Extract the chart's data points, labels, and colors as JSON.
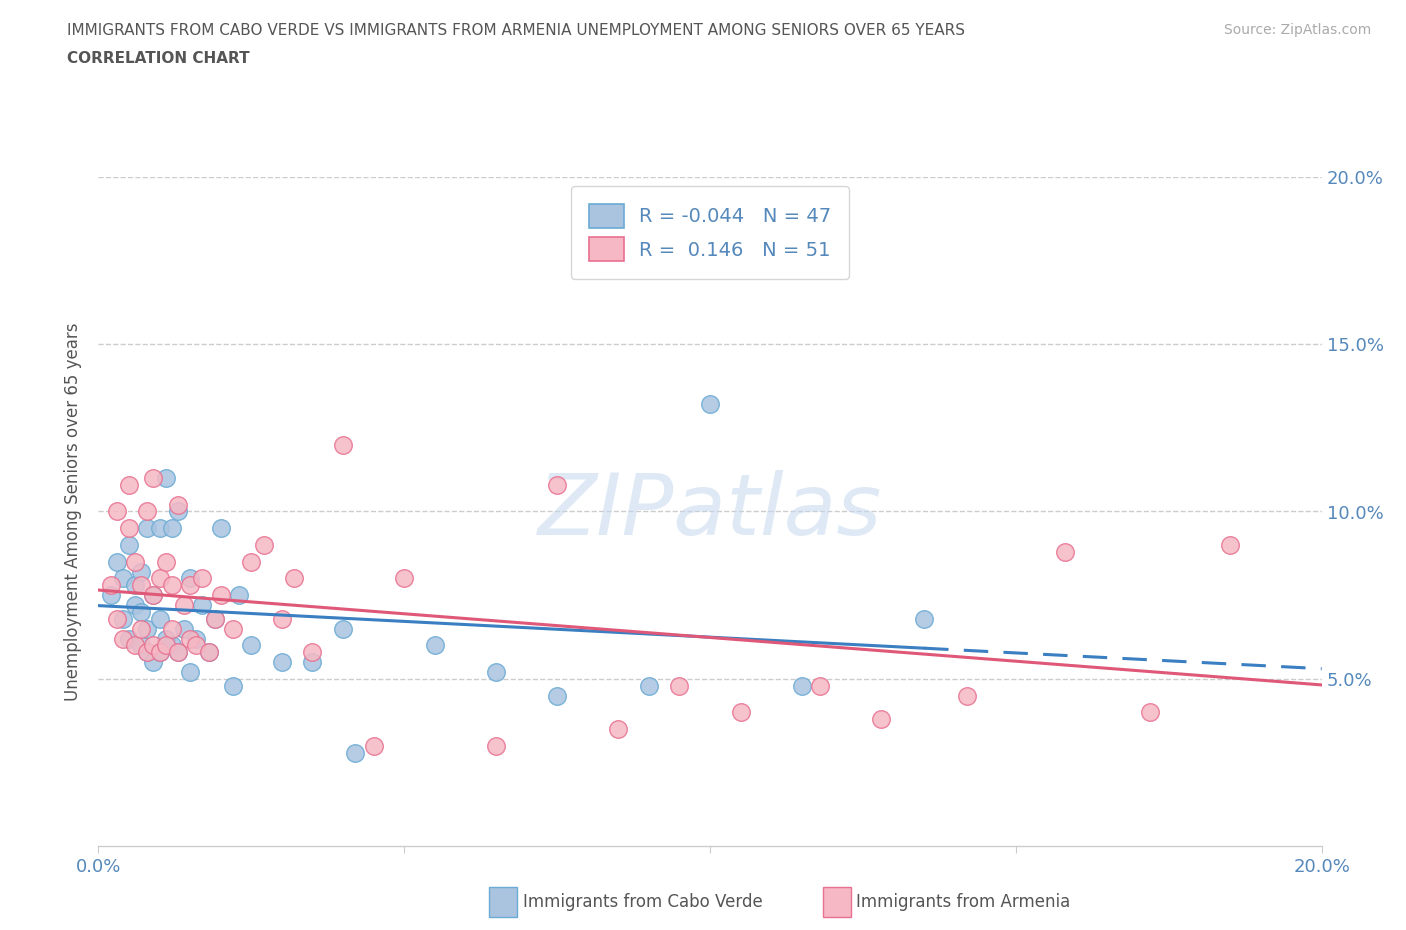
{
  "title_line1": "IMMIGRANTS FROM CABO VERDE VS IMMIGRANTS FROM ARMENIA UNEMPLOYMENT AMONG SENIORS OVER 65 YEARS",
  "title_line2": "CORRELATION CHART",
  "source_text": "Source: ZipAtlas.com",
  "watermark": "ZIPatlas",
  "ylabel": "Unemployment Among Seniors over 65 years",
  "xlim": [
    0.0,
    0.2
  ],
  "ylim": [
    0.0,
    0.2
  ],
  "ytick_positions": [
    0.05,
    0.1,
    0.15,
    0.2
  ],
  "ytick_labels": [
    "5.0%",
    "10.0%",
    "15.0%",
    "20.0%"
  ],
  "cabo_verde_color": "#aac4e0",
  "armenia_color": "#f5b8c4",
  "cabo_verde_edge": "#6aaad4",
  "armenia_edge": "#e87090",
  "legend_cabo_r": "R = -0.044",
  "legend_cabo_n": "N = 47",
  "legend_arm_r": "R =  0.146",
  "legend_arm_n": "N = 51",
  "trend_cabo_color": "#3a7fc1",
  "trend_arm_color": "#e05878",
  "cabo_verde_x": [
    0.002,
    0.003,
    0.004,
    0.004,
    0.005,
    0.005,
    0.006,
    0.006,
    0.007,
    0.007,
    0.007,
    0.008,
    0.008,
    0.008,
    0.009,
    0.009,
    0.01,
    0.01,
    0.01,
    0.011,
    0.011,
    0.012,
    0.012,
    0.013,
    0.013,
    0.014,
    0.015,
    0.015,
    0.016,
    0.017,
    0.018,
    0.019,
    0.02,
    0.022,
    0.023,
    0.025,
    0.03,
    0.035,
    0.04,
    0.042,
    0.055,
    0.065,
    0.075,
    0.09,
    0.1,
    0.115,
    0.135
  ],
  "cabo_verde_y": [
    0.075,
    0.085,
    0.068,
    0.08,
    0.062,
    0.09,
    0.072,
    0.078,
    0.06,
    0.07,
    0.082,
    0.058,
    0.065,
    0.095,
    0.055,
    0.075,
    0.058,
    0.068,
    0.095,
    0.062,
    0.11,
    0.06,
    0.095,
    0.058,
    0.1,
    0.065,
    0.052,
    0.08,
    0.062,
    0.072,
    0.058,
    0.068,
    0.095,
    0.048,
    0.075,
    0.06,
    0.055,
    0.055,
    0.065,
    0.028,
    0.06,
    0.052,
    0.045,
    0.048,
    0.132,
    0.048,
    0.068
  ],
  "armenia_x": [
    0.002,
    0.003,
    0.003,
    0.004,
    0.005,
    0.005,
    0.006,
    0.006,
    0.007,
    0.007,
    0.008,
    0.008,
    0.009,
    0.009,
    0.009,
    0.01,
    0.01,
    0.011,
    0.011,
    0.012,
    0.012,
    0.013,
    0.013,
    0.014,
    0.015,
    0.015,
    0.016,
    0.017,
    0.018,
    0.019,
    0.02,
    0.022,
    0.025,
    0.027,
    0.03,
    0.032,
    0.035,
    0.04,
    0.045,
    0.05,
    0.065,
    0.075,
    0.085,
    0.095,
    0.105,
    0.118,
    0.128,
    0.142,
    0.158,
    0.172,
    0.185
  ],
  "armenia_y": [
    0.078,
    0.068,
    0.1,
    0.062,
    0.095,
    0.108,
    0.06,
    0.085,
    0.065,
    0.078,
    0.058,
    0.1,
    0.06,
    0.075,
    0.11,
    0.058,
    0.08,
    0.06,
    0.085,
    0.065,
    0.078,
    0.058,
    0.102,
    0.072,
    0.062,
    0.078,
    0.06,
    0.08,
    0.058,
    0.068,
    0.075,
    0.065,
    0.085,
    0.09,
    0.068,
    0.08,
    0.058,
    0.12,
    0.03,
    0.08,
    0.03,
    0.108,
    0.035,
    0.048,
    0.04,
    0.048,
    0.038,
    0.045,
    0.088,
    0.04,
    0.09
  ],
  "background_color": "#ffffff",
  "grid_color": "#cccccc",
  "title_color": "#555555",
  "label_color": "#555555",
  "tick_color": "#5588bb"
}
